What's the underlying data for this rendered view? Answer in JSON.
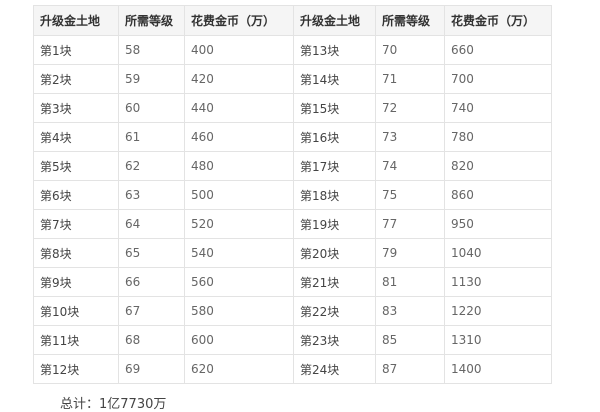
{
  "table": {
    "header": [
      "升级金土地",
      "所需等级",
      "花费金币（万）",
      "升级金土地",
      "所需等级",
      "花费金币（万）"
    ],
    "rows": [
      [
        "第1块",
        58,
        400,
        "第13块",
        70,
        660
      ],
      [
        "第2块",
        59,
        420,
        "第14块",
        71,
        700
      ],
      [
        "第3块",
        60,
        440,
        "第15块",
        72,
        740
      ],
      [
        "第4块",
        61,
        460,
        "第16块",
        73,
        780
      ],
      [
        "第5块",
        62,
        480,
        "第17块",
        74,
        820
      ],
      [
        "第6块",
        63,
        500,
        "第18块",
        75,
        860
      ],
      [
        "第7块",
        64,
        520,
        "第19块",
        77,
        950
      ],
      [
        "第8块",
        65,
        540,
        "第20块",
        79,
        1040
      ],
      [
        "第9块",
        66,
        560,
        "第21块",
        81,
        1130
      ],
      [
        "第10块",
        67,
        580,
        "第22块",
        83,
        1220
      ],
      [
        "第11块",
        68,
        600,
        "第23块",
        85,
        1310
      ],
      [
        "第12块",
        69,
        620,
        "第24块",
        87,
        1400
      ]
    ]
  },
  "footer": "总计：1亿7730万"
}
